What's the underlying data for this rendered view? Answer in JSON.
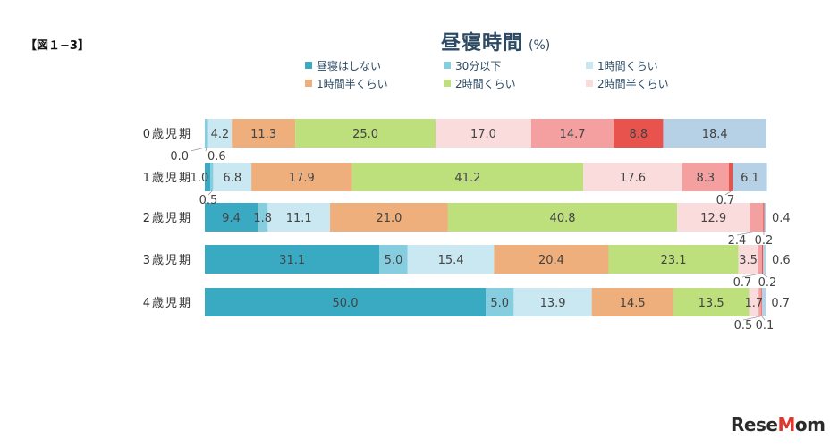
{
  "figure_label": "【図１−3】",
  "watermark": "ReseMom",
  "chart_data": {
    "type": "bar",
    "orientation": "horizontal",
    "stacked": true,
    "title": "昼寝時間",
    "unit_label": "(%)",
    "xlim": [
      0,
      100
    ],
    "legend_position": "top",
    "categories": [
      "0歳児期",
      "1歳児期",
      "2歳児期",
      "3歳児期",
      "4歳児期"
    ],
    "series": [
      {
        "name": "昼寝はしない",
        "color": "#3aa9c2",
        "values": [
          0.0,
          1.0,
          9.4,
          31.1,
          50.0
        ]
      },
      {
        "name": "30分以下",
        "color": "#86cde0",
        "values": [
          0.6,
          0.5,
          1.8,
          5.0,
          5.0
        ]
      },
      {
        "name": "1時間くらい",
        "color": "#c9e8f1",
        "values": [
          4.2,
          6.8,
          11.1,
          15.4,
          13.9
        ]
      },
      {
        "name": "1時間半くらい",
        "color": "#eeaf7c",
        "values": [
          11.3,
          17.9,
          21.0,
          20.4,
          14.5
        ]
      },
      {
        "name": "2時間くらい",
        "color": "#bde07d",
        "values": [
          25.0,
          41.2,
          40.8,
          23.1,
          13.5
        ]
      },
      {
        "name": "2時間半くらい",
        "color": "#fbdcdc",
        "values": [
          17.0,
          17.6,
          12.9,
          3.5,
          1.7
        ]
      },
      {
        "name": "",
        "color": "#f4a0a0",
        "values": [
          14.7,
          8.3,
          2.4,
          0.7,
          0.5
        ]
      },
      {
        "name": "",
        "color": "#e8534d",
        "values": [
          8.8,
          0.7,
          0.2,
          0.2,
          0.1
        ]
      },
      {
        "name": "",
        "color": "#b6d0e6",
        "values": [
          18.4,
          6.1,
          0.4,
          0.6,
          0.7
        ]
      }
    ],
    "segment_labels": [
      [
        "0.0",
        "0.6",
        "4.2",
        "11.3",
        "25.0",
        "17.0",
        "14.7",
        "8.8",
        "18.4"
      ],
      [
        "1.0",
        "0.5",
        "6.8",
        "17.9",
        "41.2",
        "17.6",
        "8.3",
        "0.7",
        "6.1"
      ],
      [
        "9.4",
        "1.8",
        "11.1",
        "21.0",
        "40.8",
        "12.9",
        "2.4",
        "0.2",
        "0.4"
      ],
      [
        "31.1",
        "5.0",
        "15.4",
        "20.4",
        "23.1",
        "3.5",
        "0.7",
        "0.2",
        "0.6"
      ],
      [
        "50.0",
        "5.0",
        "13.9",
        "14.5",
        "13.5",
        "1.7",
        "0.5",
        "0.1",
        "0.7"
      ]
    ]
  }
}
